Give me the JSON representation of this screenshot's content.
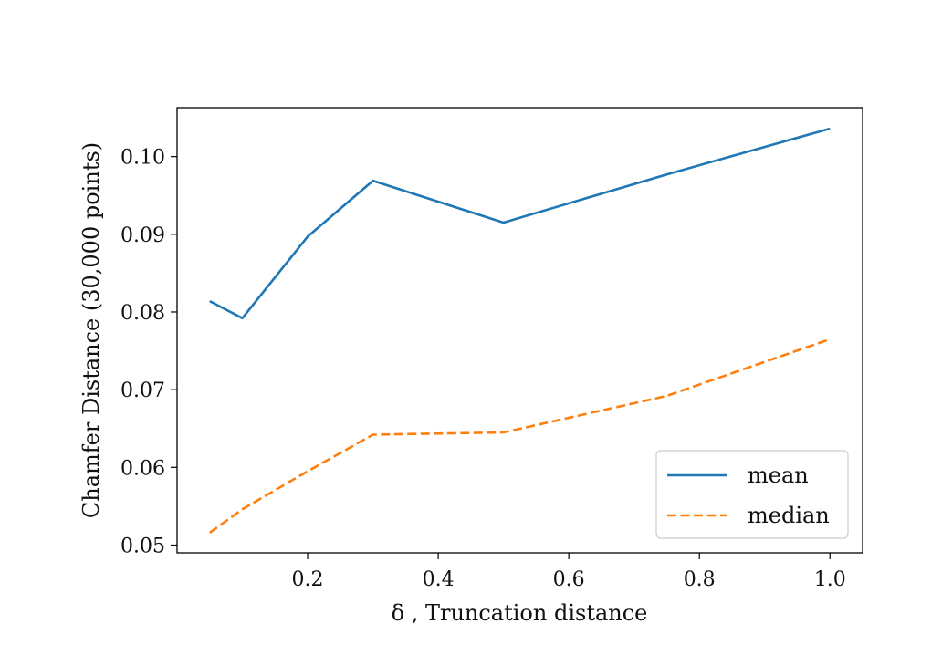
{
  "chart_data": {
    "type": "line",
    "xlabel": "δ , Truncation distance",
    "ylabel": "Chamfer Distance (30,000 points)",
    "xlim": [
      0.0,
      1.05
    ],
    "ylim": [
      0.049,
      0.1063
    ],
    "xticks": [
      0.2,
      0.4,
      0.6,
      0.8,
      1.0
    ],
    "xtick_labels": [
      "0.2",
      "0.4",
      "0.6",
      "0.8",
      "1.0"
    ],
    "yticks": [
      0.05,
      0.06,
      0.07,
      0.08,
      0.09,
      0.1
    ],
    "ytick_labels": [
      "0.05",
      "0.06",
      "0.07",
      "0.08",
      "0.09",
      "0.10"
    ],
    "grid": false,
    "legend_position": "bottom-right",
    "series": [
      {
        "name": "mean",
        "color": "#1f77b4",
        "dash": "solid",
        "x": [
          0.05,
          0.1,
          0.2,
          0.3,
          0.5,
          0.75,
          1.0
        ],
        "y": [
          0.0814,
          0.0792,
          0.0897,
          0.0969,
          0.0915,
          0.0977,
          0.1036
        ]
      },
      {
        "name": "median",
        "color": "#ff7f0e",
        "dash": "dashed",
        "x": [
          0.05,
          0.1,
          0.2,
          0.3,
          0.5,
          0.75,
          1.0
        ],
        "y": [
          0.0516,
          0.0546,
          0.0595,
          0.0642,
          0.0645,
          0.0692,
          0.0765
        ]
      }
    ]
  }
}
